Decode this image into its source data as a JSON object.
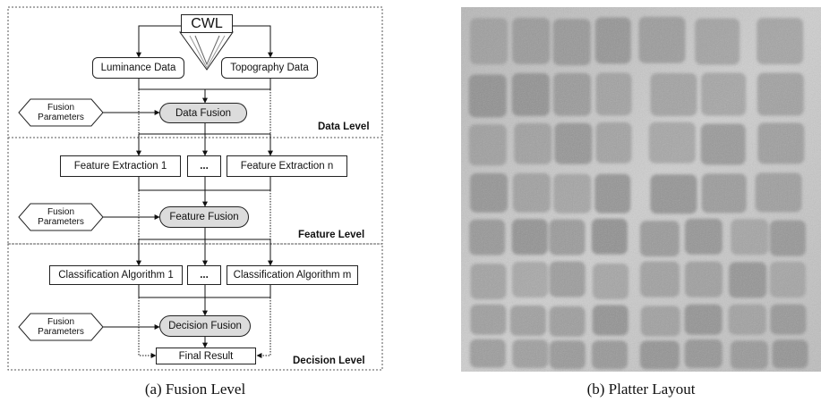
{
  "left_panel": {
    "caption": "(a) Fusion Level",
    "source": "CWL",
    "data_level": {
      "label": "Data Level",
      "inputs": [
        "Luminance Data",
        "Topography Data"
      ],
      "fusion_params": [
        "Fusion",
        "Parameters"
      ],
      "fusion": "Data Fusion"
    },
    "feature_level": {
      "label": "Feature Level",
      "items": [
        "Feature Extraction 1",
        "...",
        "Feature Extraction n"
      ],
      "fusion_params": [
        "Fusion",
        "Parameters"
      ],
      "fusion": "Feature Fusion"
    },
    "decision_level": {
      "label": "Decision Level",
      "items": [
        "Classification Algorithm 1",
        "...",
        "Classification Algorithm m"
      ],
      "fusion_params": [
        "Fusion",
        "Parameters"
      ],
      "fusion": "Decision Fusion",
      "result": "Final Result"
    }
  },
  "right_panel": {
    "caption": "(b) Platter Layout",
    "colors": {
      "background": "#c8c8c8",
      "tile": "#8a8a8a"
    }
  }
}
